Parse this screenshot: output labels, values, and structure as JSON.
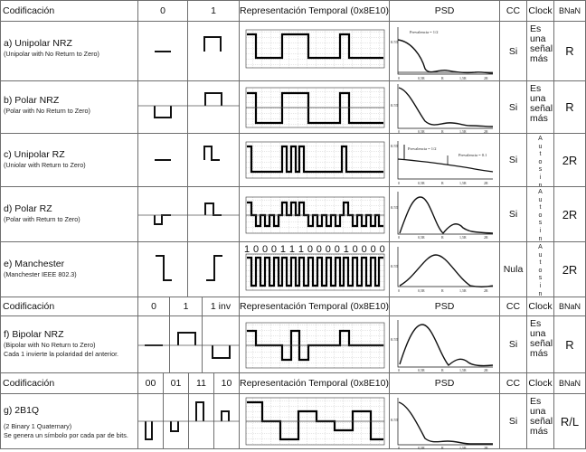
{
  "header1": {
    "codificacion": "Codificación",
    "col0": "0",
    "col1": "1",
    "temporal": "Representación Temporal (0x8E10)",
    "psd": "PSD",
    "cc": "CC",
    "clock": "Clock",
    "bnan": "BNaN"
  },
  "header2": {
    "codificacion": "Codificación",
    "col0": "0",
    "col1": "1",
    "col1inv": "1 inv",
    "temporal": "Representación Temporal (0x8E10)",
    "psd": "PSD",
    "cc": "CC",
    "clock": "Clock",
    "bnan": "BNaN"
  },
  "header3": {
    "codificacion": "Codificación",
    "c00": "00",
    "c01": "01",
    "c11": "11",
    "c10": "10",
    "temporal": "Representación Temporal (0x8E10)",
    "psd": "PSD",
    "cc": "CC",
    "clock": "Clock",
    "bnan": "BNaN"
  },
  "rows": {
    "a": {
      "title": "a) Unipolar NRZ",
      "sub": "(Unipolar with No Return to Zero)",
      "cc": "Si",
      "clock": "Es una señal más",
      "bnan": "R"
    },
    "b": {
      "title": "b) Polar NRZ",
      "sub": "(Polar with No Return to Zero)",
      "cc": "Si",
      "clock": "Es una señal más",
      "bnan": "R"
    },
    "c": {
      "title": "c) Unipolar RZ",
      "sub": "(Uniolar with Return to Zero)",
      "cc": "Si",
      "clock": "A u t o s i n c",
      "bnan": "2R"
    },
    "d": {
      "title": "d) Polar RZ",
      "sub": "(Polar with Return to Zero)",
      "cc": "Si",
      "clock": "A u t o s i n c",
      "bnan": "2R"
    },
    "e": {
      "title": "e) Manchester",
      "sub": "(Manchester IEEE 802.3)",
      "cc": "Nula",
      "clock": "A u t o s i n c",
      "bnan": "2R"
    },
    "f": {
      "title": "f) Bipolar NRZ",
      "sub": "(Bipolar with No Return to Zero)",
      "sub2": "Cada 1 invierte la polaridad del anterior.",
      "cc": "Si",
      "clock": "Es una señal más",
      "bnan": "R"
    },
    "g": {
      "title": "g) 2B1Q",
      "sub": "(2 Binary 1 Quaternary)",
      "sub2": "Se genera un símbolo por cada par de bits.",
      "cc": "Si",
      "clock": "Es una señal más",
      "bnan": "R/L"
    }
  },
  "bits_label": "1 0 0 0 1 1 1 0 0 0 0 1 0 0 0 0",
  "psd_annotations": {
    "probability_half": "Prevalencia = 1/2",
    "probability_01": "Prevalencia = 0.1",
    "ticks": [
      "0",
      "0,5R",
      "R",
      "1,5R",
      "2R"
    ]
  }
}
